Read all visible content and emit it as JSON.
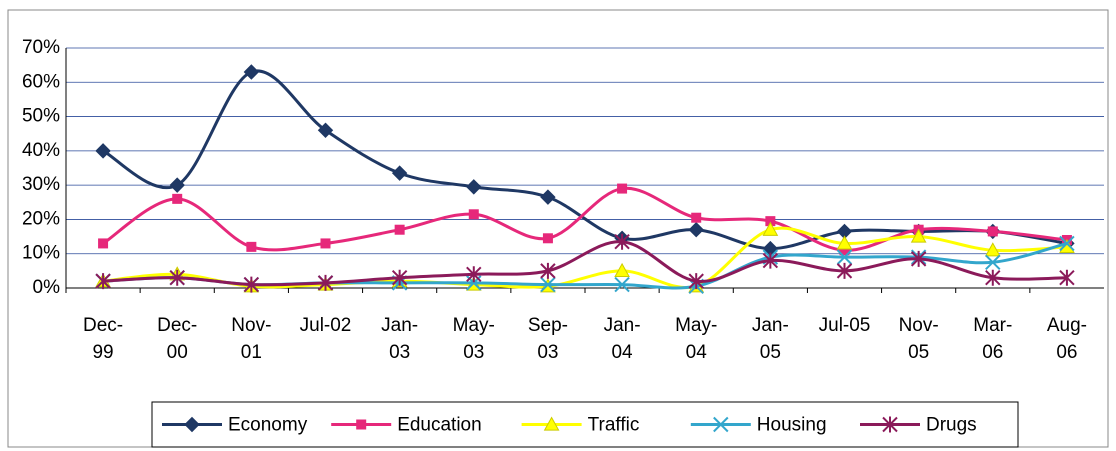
{
  "chart_data": {
    "type": "line",
    "categories": [
      "Dec-99",
      "Dec-00",
      "Nov-01",
      "Jul-02",
      "Jan-03",
      "May-03",
      "Sep-03",
      "Jan-04",
      "May-04",
      "Jan-05",
      "Jul-05",
      "Nov-05",
      "Mar-06",
      "Aug-06"
    ],
    "series": [
      {
        "name": "Economy",
        "color": "#1f3864",
        "marker": "diamond",
        "values": [
          40,
          30,
          63,
          46,
          33.5,
          29.5,
          26.5,
          14.5,
          17,
          11.5,
          16.5,
          16.5,
          16.5,
          13
        ]
      },
      {
        "name": "Education",
        "color": "#e6287a",
        "marker": "square",
        "values": [
          13,
          26,
          12,
          13,
          17,
          21.5,
          14.5,
          29,
          20.5,
          19.5,
          11,
          17,
          16.5,
          14
        ]
      },
      {
        "name": "Traffic",
        "color": "#ffff00",
        "marker": "triangle",
        "values": [
          2,
          4,
          0.5,
          1,
          2,
          1,
          0.5,
          5,
          0.5,
          17,
          13,
          15,
          11,
          12
        ]
      },
      {
        "name": "Housing",
        "color": "#33a6cc",
        "marker": "x",
        "values": [
          2,
          3,
          1,
          1.5,
          1.5,
          1.5,
          1,
          1,
          0.5,
          9,
          9,
          9,
          7.5,
          13
        ]
      },
      {
        "name": "Drugs",
        "color": "#8b1a5a",
        "marker": "asterisk",
        "values": [
          2,
          3,
          1,
          1.5,
          3,
          4,
          5,
          13.5,
          2,
          8,
          5,
          8.5,
          3,
          3
        ]
      }
    ],
    "ylim": [
      0,
      70
    ],
    "yticks": [
      {
        "value": 0,
        "label": "0%"
      },
      {
        "value": 10,
        "label": "10%"
      },
      {
        "value": 20,
        "label": "20%"
      },
      {
        "value": 30,
        "label": "30%"
      },
      {
        "value": 40,
        "label": "40%"
      },
      {
        "value": 50,
        "label": "50%"
      },
      {
        "value": 60,
        "label": "60%"
      },
      {
        "value": 70,
        "label": "70%"
      }
    ],
    "grid": true,
    "smooth": true,
    "legend": "bottom"
  }
}
